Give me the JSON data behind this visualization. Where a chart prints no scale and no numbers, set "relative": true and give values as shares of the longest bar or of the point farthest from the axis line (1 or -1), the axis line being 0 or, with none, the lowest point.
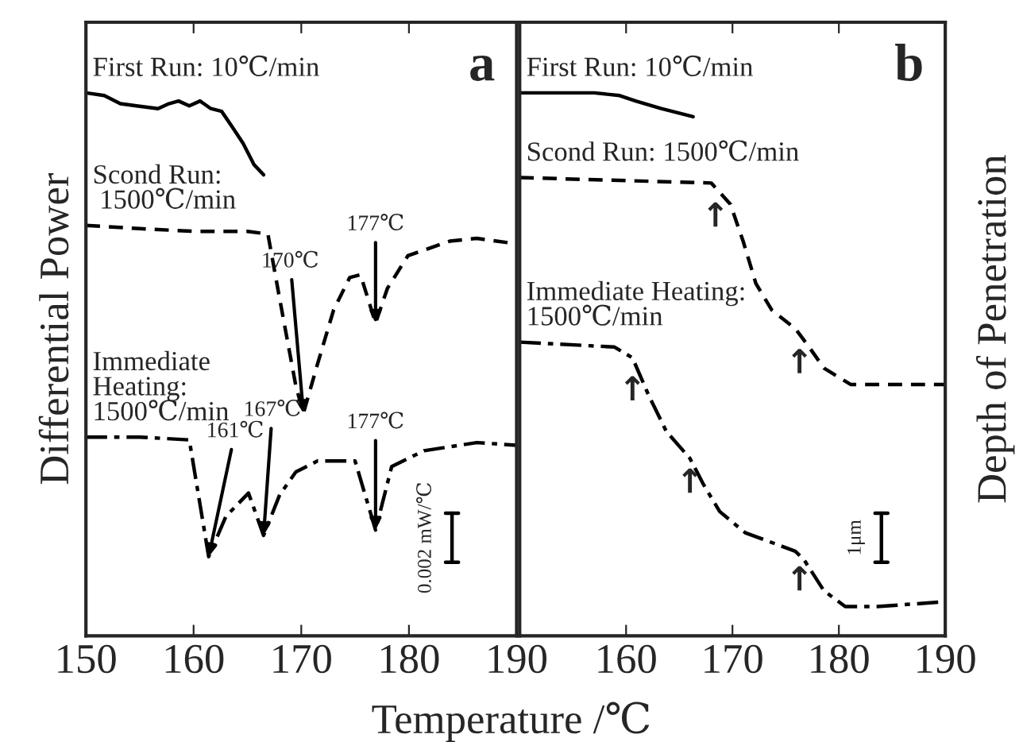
{
  "chart_data": [
    {
      "type": "line",
      "relative": true,
      "ylabel": "Differential Power",
      "xlim": [
        150,
        190
      ],
      "xticks": [
        150,
        160,
        170,
        180,
        190
      ],
      "xlabel": "Temperature /℃",
      "marker": "none",
      "grid": false,
      "legend": false,
      "series": [
        {
          "name": "First Run: 10℃/min",
          "color": "#000000",
          "line_style": "solid",
          "x": [
            150.0,
            151.7,
            153.2,
            154.7,
            156.7,
            157.7,
            158.6,
            159.6,
            160.6,
            161.6,
            162.6,
            163.6,
            164.6,
            165.6,
            166.5
          ],
          "values": [
            1.0,
            0.995,
            0.98,
            0.976,
            0.971,
            0.98,
            0.985,
            0.976,
            0.985,
            0.971,
            0.966,
            0.937,
            0.907,
            0.868,
            0.849
          ]
        },
        {
          "name": "Scond Run:\n 1500℃/min",
          "color": "#000000",
          "line_style": "dashed",
          "x": [
            150,
            155,
            160,
            165,
            166.9,
            168,
            169.5,
            170.2,
            171.5,
            173,
            174.5,
            175.5,
            176.9,
            178,
            179.9,
            183.8,
            186.3,
            190
          ],
          "values": [
            0.756,
            0.75,
            0.745,
            0.745,
            0.74,
            0.62,
            0.46,
            0.41,
            0.5,
            0.6,
            0.66,
            0.665,
            0.576,
            0.64,
            0.7,
            0.727,
            0.732,
            0.722
          ]
        },
        {
          "name": "Immediate\nHeating:\n1500℃/min",
          "color": "#000000",
          "line_style": "dashdot",
          "x": [
            150,
            155,
            159.6,
            161.4,
            163,
            165.1,
            166.5,
            168,
            169.5,
            171.5,
            175,
            176.9,
            178.4,
            181.4,
            186.3,
            190
          ],
          "values": [
            0.366,
            0.366,
            0.361,
            0.146,
            0.22,
            0.263,
            0.185,
            0.26,
            0.302,
            0.322,
            0.322,
            0.195,
            0.312,
            0.341,
            0.356,
            0.351
          ]
        }
      ],
      "annotations": [
        {
          "text": "170℃",
          "x": 170.2,
          "y": 0.41
        },
        {
          "text": "177℃",
          "x": 176.9,
          "y": 0.576
        },
        {
          "text": "161℃",
          "x": 161.4,
          "y": 0.146
        },
        {
          "text": "167℃",
          "x": 166.5,
          "y": 0.185
        },
        {
          "text": "177℃",
          "x": 176.9,
          "y": 0.195
        },
        "0.002 mW/℃",
        "a"
      ]
    },
    {
      "type": "line",
      "relative": true,
      "ylabel": "Depth of Penetration",
      "xlim": [
        150,
        190
      ],
      "xticks": [
        {
          "value": 150,
          "label": null
        },
        160,
        170,
        180,
        190
      ],
      "marker": "none",
      "grid": false,
      "legend": false,
      "series": [
        {
          "name": "First Run: 10℃/min",
          "color": "#000000",
          "line_style": "solid",
          "x": [
            150,
            157,
            159.4,
            160.9,
            163.3,
            166.3
          ],
          "values": [
            1.0,
            1.0,
            0.995,
            0.985,
            0.971,
            0.956
          ]
        },
        {
          "name": "Scond Run: 1500℃/min",
          "color": "#000000",
          "line_style": "dashed",
          "x": [
            150,
            168,
            169.8,
            171,
            172.2,
            173.7,
            175.9,
            177.2,
            178.6,
            181.1,
            190
          ],
          "values": [
            0.844,
            0.834,
            0.795,
            0.727,
            0.649,
            0.6,
            0.566,
            0.532,
            0.493,
            0.463,
            0.463
          ]
        },
        {
          "name": "Immediate Heating:\n1500℃/min",
          "color": "#000000",
          "line_style": "dashdot",
          "x": [
            150,
            158.9,
            160.6,
            162.1,
            163.8,
            166,
            167.3,
            168.8,
            171.2,
            175.9,
            176.7,
            178.6,
            180.6,
            183.6,
            190
          ],
          "values": [
            0.541,
            0.532,
            0.512,
            0.444,
            0.376,
            0.327,
            0.278,
            0.229,
            0.19,
            0.156,
            0.141,
            0.083,
            0.054,
            0.054,
            0.063
          ]
        }
      ],
      "annotations": [
        {
          "text": "↑",
          "x": 168.4,
          "y": 0.8
        },
        {
          "text": "↑",
          "x": 176.3,
          "y": 0.53
        },
        {
          "text": "↑",
          "x": 160.6,
          "y": 0.48
        },
        {
          "text": "↑",
          "x": 166.0,
          "y": 0.31
        },
        {
          "text": "↑",
          "x": 176.3,
          "y": 0.13
        },
        "1μm",
        "b"
      ]
    }
  ]
}
